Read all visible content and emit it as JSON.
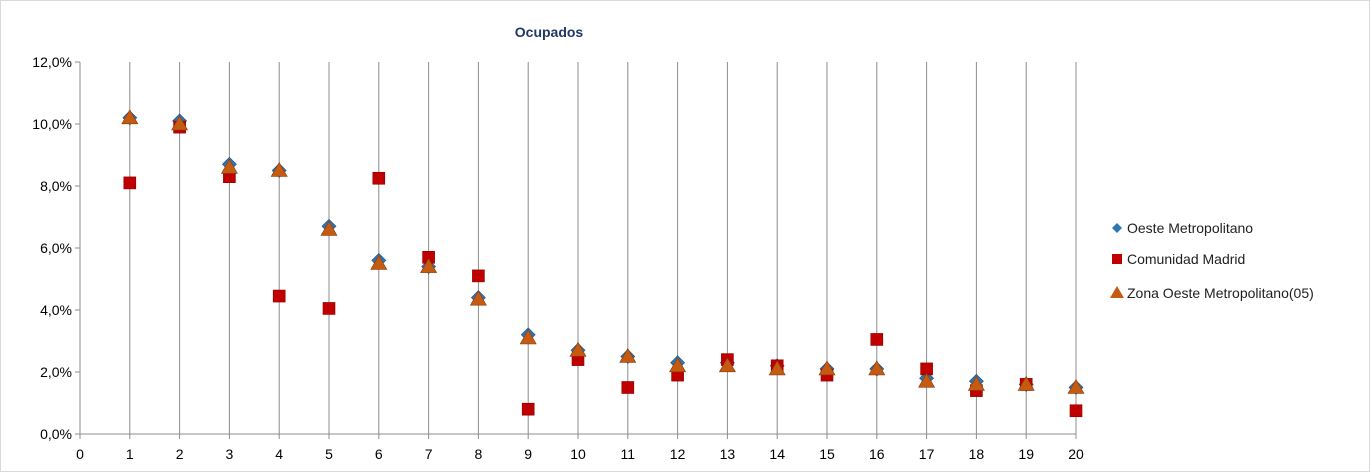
{
  "chart_data": {
    "type": "scatter",
    "title": "Ocupados",
    "xlabel": "",
    "ylabel": "",
    "xlim": [
      0,
      20
    ],
    "ylim": [
      0,
      0.12
    ],
    "x_ticks": [
      "0",
      "1",
      "2",
      "3",
      "4",
      "5",
      "6",
      "7",
      "8",
      "9",
      "10",
      "11",
      "12",
      "13",
      "14",
      "15",
      "16",
      "17",
      "18",
      "19",
      "20"
    ],
    "y_ticks": [
      "0,0%",
      "2,0%",
      "4,0%",
      "6,0%",
      "8,0%",
      "10,0%",
      "12,0%"
    ],
    "y_tick_values": [
      0,
      0.02,
      0.04,
      0.06,
      0.08,
      0.1,
      0.12
    ],
    "vertical_gridlines": true,
    "legend_position": "right",
    "x": [
      1,
      2,
      3,
      4,
      5,
      6,
      7,
      8,
      9,
      10,
      11,
      12,
      13,
      14,
      15,
      16,
      17,
      18,
      19,
      20
    ],
    "series": [
      {
        "name": "Oeste Metropolitano",
        "marker": "diamond",
        "color": "#2e75b6",
        "values": [
          0.102,
          0.101,
          0.087,
          0.085,
          0.067,
          0.056,
          0.054,
          0.044,
          0.032,
          0.027,
          0.025,
          0.023,
          0.023,
          0.022,
          0.021,
          0.021,
          0.018,
          0.017,
          0.016,
          0.015
        ]
      },
      {
        "name": "Comunidad Madrid",
        "marker": "square",
        "color": "#c00000",
        "values": [
          0.081,
          0.099,
          0.083,
          0.0445,
          0.0405,
          0.0825,
          0.057,
          0.051,
          0.008,
          0.024,
          0.015,
          0.019,
          0.024,
          0.022,
          0.019,
          0.0305,
          0.021,
          0.014,
          0.016,
          0.0075
        ]
      },
      {
        "name": "Zona Oeste Metropolitano(05)",
        "marker": "triangle",
        "color": "#c55a11",
        "values": [
          0.102,
          0.1,
          0.086,
          0.085,
          0.066,
          0.055,
          0.054,
          0.0435,
          0.031,
          0.027,
          0.025,
          0.022,
          0.022,
          0.021,
          0.021,
          0.021,
          0.017,
          0.016,
          0.016,
          0.015
        ]
      }
    ]
  }
}
